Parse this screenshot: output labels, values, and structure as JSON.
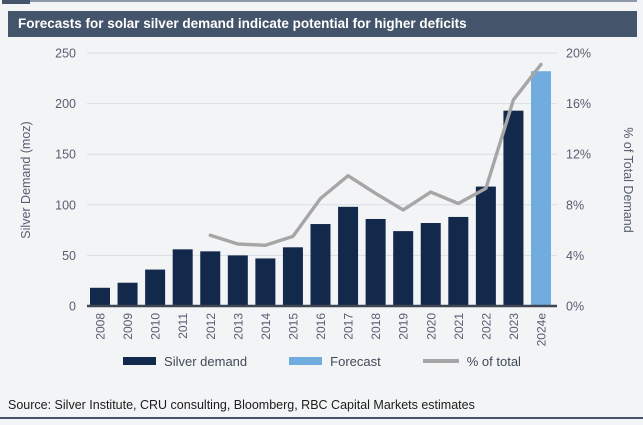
{
  "title": "Forecasts for solar silver demand indicate potential for higher deficits",
  "source": "Source: Silver Institute, CRU consulting, Bloomberg, RBC Capital Markets estimates",
  "colors": {
    "banner": "#44546a",
    "bar_navy": "#13294b",
    "forecast_blue": "#71acdf",
    "line_gray": "#a6a6a6",
    "grid": "#dadde2",
    "axis_text": "#565e70",
    "baseline": "#3f4653",
    "background": "#f3f4f6",
    "bottom_rule": "#44546a"
  },
  "legend": {
    "items": [
      {
        "label": "Silver demand",
        "type": "bar",
        "color_key": "bar_navy"
      },
      {
        "label": "Forecast",
        "type": "bar",
        "color_key": "forecast_blue"
      },
      {
        "label": "% of total",
        "type": "line",
        "color_key": "line_gray"
      }
    ]
  },
  "chart_data": {
    "type": "bar+line combo",
    "categories": [
      "2008",
      "2009",
      "2010",
      "2011",
      "2012",
      "2013",
      "2014",
      "2015",
      "2016",
      "2017",
      "2018",
      "2019",
      "2020",
      "2021",
      "2022",
      "2023",
      "2024e"
    ],
    "series": [
      {
        "name": "Silver demand",
        "type": "bar",
        "axis": "left",
        "values": [
          18,
          23,
          36,
          56,
          54,
          50,
          47,
          58,
          81,
          98,
          86,
          74,
          82,
          88,
          118,
          193,
          null
        ]
      },
      {
        "name": "Forecast",
        "type": "bar",
        "axis": "left",
        "values": [
          null,
          null,
          null,
          null,
          null,
          null,
          null,
          null,
          null,
          null,
          null,
          null,
          null,
          null,
          null,
          null,
          232
        ]
      },
      {
        "name": "% of total",
        "type": "line",
        "axis": "right",
        "values": [
          null,
          null,
          null,
          null,
          5.6,
          4.9,
          4.8,
          5.5,
          8.5,
          10.3,
          8.9,
          7.6,
          9.0,
          8.1,
          9.3,
          16.3,
          19.1
        ]
      }
    ],
    "left_axis": {
      "title": "Silver Demand (moz)",
      "min": 0,
      "max": 250,
      "step": 50,
      "ticks": [
        "0",
        "50",
        "100",
        "150",
        "200",
        "250"
      ]
    },
    "right_axis": {
      "title": "% of Total Demand",
      "min": 0,
      "max": 20,
      "step": 4,
      "ticks": [
        "0%",
        "4%",
        "8%",
        "12%",
        "16%",
        "20%"
      ]
    },
    "grid": "horizontal only",
    "legend_position": "bottom"
  }
}
